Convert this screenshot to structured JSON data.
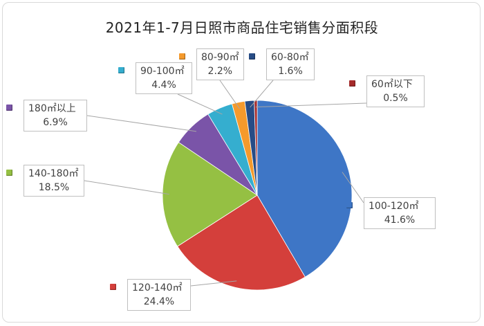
{
  "title": "2021年1-7月日照市商品住宅销售分面积段",
  "chart_data": {
    "type": "pie",
    "title": "2021年1-7月日照市商品住宅销售分面积段",
    "slices": [
      {
        "label": "100-120㎡",
        "value": 41.6,
        "pct_label": "41.6%",
        "color": "#3E76C6"
      },
      {
        "label": "120-140㎡",
        "value": 24.4,
        "pct_label": "24.4%",
        "color": "#D43F3B"
      },
      {
        "label": "140-180㎡",
        "value": 18.5,
        "pct_label": "18.5%",
        "color": "#95C043"
      },
      {
        "label": "180㎡以上",
        "value": 6.9,
        "pct_label": "6.9%",
        "color": "#7A54A8"
      },
      {
        "label": "90-100㎡",
        "value": 4.4,
        "pct_label": "4.4%",
        "color": "#35AECF"
      },
      {
        "label": "80-90㎡",
        "value": 2.2,
        "pct_label": "2.2%",
        "color": "#F59A2C"
      },
      {
        "label": "60-80㎡",
        "value": 1.6,
        "pct_label": "1.6%",
        "color": "#274C86"
      },
      {
        "label": "60㎡以下",
        "value": 0.5,
        "pct_label": "0.5%",
        "color": "#A52A2A"
      }
    ]
  }
}
